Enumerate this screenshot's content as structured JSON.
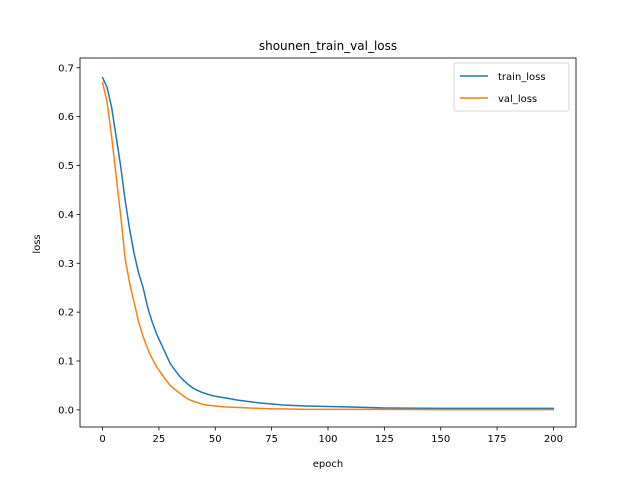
{
  "chart_data": {
    "type": "line",
    "title": "shounen_train_val_loss",
    "xlabel": "epoch",
    "ylabel": "loss",
    "xlim": [
      -10,
      210
    ],
    "ylim": [
      -0.035,
      0.72
    ],
    "x_ticks": [
      0,
      25,
      50,
      75,
      100,
      125,
      150,
      175,
      200
    ],
    "y_ticks": [
      0.0,
      0.1,
      0.2,
      0.3,
      0.4,
      0.5,
      0.6,
      0.7
    ],
    "x_tick_labels": [
      "0",
      "25",
      "50",
      "75",
      "100",
      "125",
      "150",
      "175",
      "200"
    ],
    "y_tick_labels": [
      "0.0",
      "0.1",
      "0.2",
      "0.3",
      "0.4",
      "0.5",
      "0.6",
      "0.7"
    ],
    "grid": false,
    "legend_position": "top-right",
    "series": [
      {
        "name": "train_loss",
        "color": "#1f77b4",
        "x": [
          0,
          2,
          4,
          6,
          8,
          10,
          12,
          14,
          16,
          18,
          20,
          22,
          24,
          26,
          28,
          30,
          32,
          34,
          36,
          38,
          40,
          42,
          44,
          46,
          48,
          50,
          55,
          60,
          65,
          70,
          75,
          80,
          90,
          100,
          110,
          125,
          150,
          175,
          200
        ],
        "y": [
          0.68,
          0.66,
          0.62,
          0.56,
          0.5,
          0.43,
          0.37,
          0.32,
          0.28,
          0.25,
          0.21,
          0.18,
          0.155,
          0.135,
          0.115,
          0.095,
          0.082,
          0.07,
          0.06,
          0.052,
          0.045,
          0.04,
          0.036,
          0.033,
          0.03,
          0.028,
          0.024,
          0.02,
          0.017,
          0.014,
          0.012,
          0.01,
          0.008,
          0.007,
          0.006,
          0.004,
          0.003,
          0.003,
          0.003
        ]
      },
      {
        "name": "val_loss",
        "color": "#ff7f0e",
        "x": [
          0,
          2,
          4,
          6,
          8,
          10,
          12,
          14,
          16,
          18,
          20,
          22,
          24,
          26,
          28,
          30,
          32,
          34,
          36,
          38,
          40,
          42,
          44,
          46,
          48,
          50,
          55,
          60,
          65,
          70,
          75,
          80,
          90,
          100,
          110,
          125,
          150,
          175,
          200
        ],
        "y": [
          0.67,
          0.63,
          0.56,
          0.48,
          0.4,
          0.31,
          0.26,
          0.22,
          0.18,
          0.15,
          0.125,
          0.105,
          0.088,
          0.075,
          0.062,
          0.05,
          0.042,
          0.035,
          0.028,
          0.022,
          0.018,
          0.015,
          0.012,
          0.01,
          0.009,
          0.008,
          0.006,
          0.005,
          0.004,
          0.003,
          0.002,
          0.002,
          0.001,
          0.001,
          0.001,
          0.001,
          0.0005,
          0.0005,
          0.0005
        ]
      }
    ]
  }
}
